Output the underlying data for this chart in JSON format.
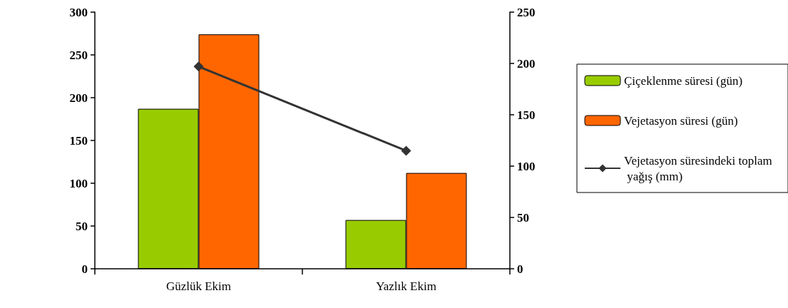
{
  "chart_data": {
    "type": "bar",
    "categories": [
      "Güzlük Ekim",
      "Yazlık Ekim"
    ],
    "series": [
      {
        "name": "Çiçeklenme süresi (gün)",
        "color": "#99cc00",
        "values": [
          187,
          57
        ]
      },
      {
        "name": "Vejetasyon süresi (gün)",
        "color": "#ff6600",
        "values": [
          274,
          112
        ]
      },
      {
        "name": "Vejetasyon süresindeki toplam yağış (mm)",
        "type": "line",
        "axis": "y2",
        "color": "#333333",
        "marker": "diamond",
        "values": [
          197,
          115
        ]
      }
    ],
    "ylim": [
      0,
      300
    ],
    "yticks": [
      0,
      50,
      100,
      150,
      200,
      250,
      300
    ],
    "y2lim": [
      0,
      250
    ],
    "y2ticks": [
      0,
      50,
      100,
      150,
      200,
      250
    ],
    "grid": false,
    "legend": "right"
  }
}
